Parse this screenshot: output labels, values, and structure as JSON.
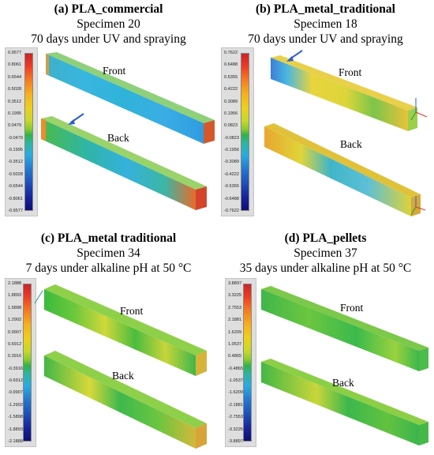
{
  "colors": {
    "high": "#c9252a",
    "mid": "#2fb34a",
    "low": "#100f75",
    "arrow": "#2a5fcf"
  },
  "panels": {
    "a": {
      "title": "(a) PLA_commercial",
      "line1": "Specimen 20",
      "line2": "70 days under UV and spraying",
      "scale": [
        "0.9577",
        "0.8061",
        "0.6544",
        "0.5028",
        "0.3512",
        "0.1995",
        "0.0479",
        "-0.0479",
        "-0.1995",
        "-0.3512",
        "-0.5028",
        "-0.6544",
        "-0.8061",
        "-0.9577"
      ],
      "front": "Front",
      "back": "Back"
    },
    "b": {
      "title": "(b) PLA_metal_traditional",
      "line1": "Specimen 18",
      "line2": "70 days under UV and spraying",
      "scale": [
        "0.7622",
        "0.6488",
        "0.5355",
        "0.4222",
        "0.3089",
        "0.1956",
        "0.0823",
        "-0.0823",
        "-0.1956",
        "-0.3089",
        "-0.4222",
        "-0.5355",
        "-0.6488",
        "-0.7622"
      ],
      "front": "Front",
      "back": "Back"
    },
    "c": {
      "title": "(c) PLA_metal traditional",
      "line1": "Specimen 34",
      "line2": "7 days under alkaline pH at 50 °C",
      "scale": [
        "2.1888",
        "1.8893",
        "1.5898",
        "1.2902",
        "0.9907",
        "0.6912",
        "0.3916",
        "-0.3916",
        "-0.6912",
        "-0.9907",
        "-1.2902",
        "-1.5898",
        "-1.8893",
        "-2.1888"
      ],
      "front": "Front",
      "back": "Back"
    },
    "d": {
      "title": "(d) PLA_pellets",
      "line1": "Specimen 37",
      "line2": "35 days under alkaline pH at 50 °C",
      "scale": [
        "3.8897",
        "3.3225",
        "2.7553",
        "2.1881",
        "1.6209",
        "1.0537",
        "0.4865",
        "-0.4865",
        "-1.0537",
        "-1.6209",
        "-2.1881",
        "-2.7553",
        "-3.3225",
        "-3.8897"
      ],
      "front": "Front",
      "back": "Back"
    }
  }
}
